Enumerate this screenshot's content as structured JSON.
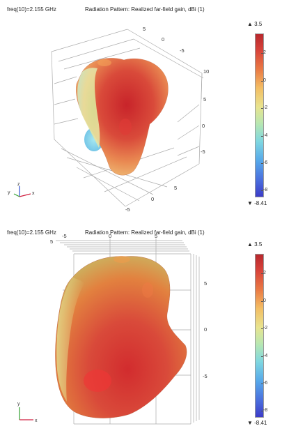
{
  "plots": [
    {
      "freq_label": "freq(10)=2.155 GHz",
      "title": "Radiation Pattern: Realized far-field gain, dBi (1)",
      "colorbar": {
        "max_label": "▲ 3.5",
        "min_label": "▼ -8.41",
        "ticks": [
          "2",
          "0",
          "-2",
          "-4",
          "-6",
          "-8"
        ]
      },
      "axes_ticks": {
        "top": [
          "5",
          "0",
          "-5"
        ],
        "right": [
          "10",
          "5",
          "0",
          "-5"
        ],
        "bottom": [
          "5",
          "0",
          "-5"
        ]
      },
      "triad": {
        "x": "x",
        "y": "y",
        "z": "z"
      }
    },
    {
      "freq_label": "freq(10)=2.155 GHz",
      "title": "Radiation Pattern: Realized far-field gain, dBi (1)",
      "colorbar": {
        "max_label": "▲ 3.5",
        "min_label": "▼ -8.41",
        "ticks": [
          "2",
          "0",
          "-2",
          "-4",
          "-6",
          "-8"
        ]
      },
      "axes_ticks": {
        "top": [
          "-5",
          "0",
          "5"
        ],
        "left": [
          "5"
        ],
        "right": [
          "5",
          "0",
          "-5"
        ]
      },
      "triad": {
        "x": "x",
        "y": "y"
      }
    }
  ],
  "colors": {
    "gain_max": "#b8282d",
    "gain_mid": "#e8e48f",
    "gain_min": "#3c3cc8",
    "triad_x": "#d02040",
    "triad_y": "#30a030",
    "triad_z": "#3050d0"
  }
}
